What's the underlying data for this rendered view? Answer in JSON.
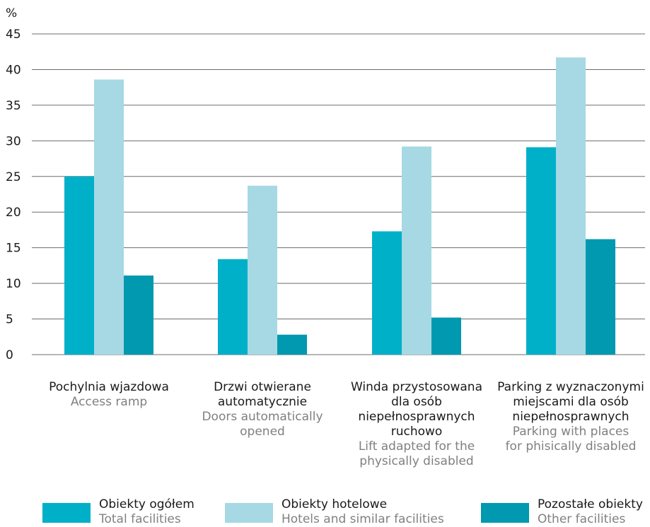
{
  "chart_data": {
    "type": "bar",
    "y_unit": "%",
    "ylim": [
      0,
      45
    ],
    "yticks": [
      0,
      5,
      10,
      15,
      20,
      25,
      30,
      35,
      40,
      45
    ],
    "grid": true,
    "legend_position": "bottom",
    "categories": [
      {
        "pl": [
          "Pochylnia wjazdowa"
        ],
        "en": [
          "Access ramp"
        ]
      },
      {
        "pl": [
          "Drzwi otwierane",
          "automatycznie"
        ],
        "en": [
          "Doors automatically",
          "opened"
        ]
      },
      {
        "pl": [
          "Winda przystosowana",
          "dla osób",
          "niepełnosprawnych",
          "ruchowo"
        ],
        "en": [
          "Lift adapted for the",
          "physically disabled"
        ]
      },
      {
        "pl": [
          "Parking z wyznaczonymi",
          "miejscami dla osób",
          "niepełnosprawnych"
        ],
        "en": [
          "Parking with places",
          "for phisically disabled"
        ]
      }
    ],
    "series": [
      {
        "name": "Obiekty ogółem",
        "name_en": "Total facilities",
        "color": "#00b0c8",
        "values": [
          25.0,
          13.4,
          17.3,
          29.1
        ]
      },
      {
        "name": "Obiekty hotelowe",
        "name_en": "Hotels and similar facilities",
        "color": "#a6d9e3",
        "values": [
          38.6,
          23.7,
          29.2,
          41.7
        ]
      },
      {
        "name": "Pozostałe obiekty",
        "name_en": "Other facilities",
        "color": "#0099b0",
        "values": [
          11.1,
          2.8,
          5.2,
          16.2
        ]
      }
    ]
  }
}
